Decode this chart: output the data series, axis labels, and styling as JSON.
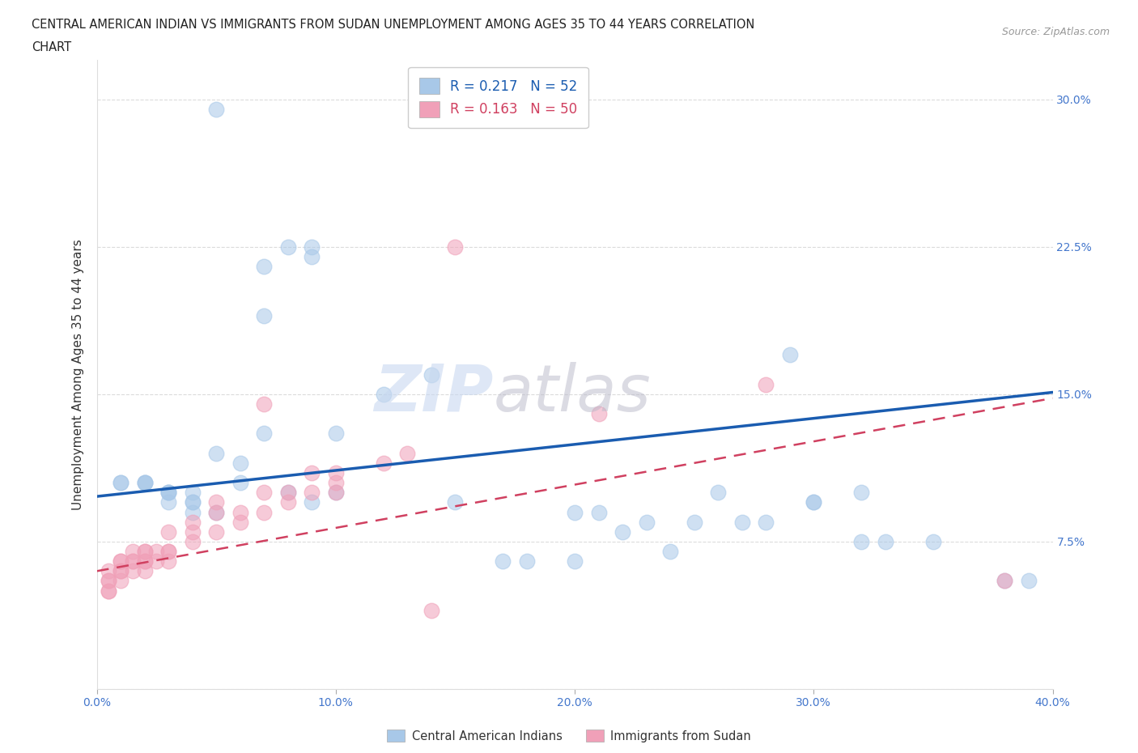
{
  "title_line1": "CENTRAL AMERICAN INDIAN VS IMMIGRANTS FROM SUDAN UNEMPLOYMENT AMONG AGES 35 TO 44 YEARS CORRELATION",
  "title_line2": "CHART",
  "source": "Source: ZipAtlas.com",
  "ylabel": "Unemployment Among Ages 35 to 44 years",
  "xlim": [
    0.0,
    0.4
  ],
  "ylim": [
    0.0,
    0.32
  ],
  "xticks": [
    0.0,
    0.1,
    0.2,
    0.3,
    0.4
  ],
  "xticklabels": [
    "0.0%",
    "10.0%",
    "20.0%",
    "30.0%",
    "40.0%"
  ],
  "ytick_right_labels": [
    "",
    "7.5%",
    "15.0%",
    "22.5%",
    "30.0%"
  ],
  "ytick_right_values": [
    0.0,
    0.075,
    0.15,
    0.225,
    0.3
  ],
  "R_blue": 0.217,
  "N_blue": 52,
  "R_pink": 0.163,
  "N_pink": 50,
  "blue_color": "#A8C8E8",
  "pink_color": "#F0A0B8",
  "blue_line_color": "#1A5CB0",
  "pink_line_color": "#D04060",
  "legend_label_blue": "Central American Indians",
  "legend_label_pink": "Immigrants from Sudan",
  "blue_scatter_x": [
    0.05,
    0.07,
    0.07,
    0.08,
    0.09,
    0.09,
    0.01,
    0.01,
    0.02,
    0.02,
    0.02,
    0.03,
    0.03,
    0.03,
    0.03,
    0.04,
    0.04,
    0.04,
    0.04,
    0.05,
    0.05,
    0.06,
    0.06,
    0.07,
    0.08,
    0.09,
    0.1,
    0.1,
    0.12,
    0.14,
    0.15,
    0.2,
    0.21,
    0.22,
    0.25,
    0.28,
    0.3,
    0.32,
    0.33,
    0.35,
    0.38,
    0.29,
    0.3,
    0.32,
    0.27,
    0.26,
    0.23,
    0.24,
    0.17,
    0.18,
    0.2,
    0.39
  ],
  "blue_scatter_y": [
    0.295,
    0.19,
    0.215,
    0.225,
    0.225,
    0.22,
    0.105,
    0.105,
    0.105,
    0.105,
    0.105,
    0.1,
    0.1,
    0.1,
    0.095,
    0.1,
    0.095,
    0.095,
    0.09,
    0.09,
    0.12,
    0.115,
    0.105,
    0.13,
    0.1,
    0.095,
    0.13,
    0.1,
    0.15,
    0.16,
    0.095,
    0.09,
    0.09,
    0.08,
    0.085,
    0.085,
    0.095,
    0.075,
    0.075,
    0.075,
    0.055,
    0.17,
    0.095,
    0.1,
    0.085,
    0.1,
    0.085,
    0.07,
    0.065,
    0.065,
    0.065,
    0.055
  ],
  "pink_scatter_x": [
    0.005,
    0.005,
    0.005,
    0.005,
    0.005,
    0.01,
    0.01,
    0.01,
    0.01,
    0.01,
    0.015,
    0.015,
    0.015,
    0.015,
    0.02,
    0.02,
    0.02,
    0.02,
    0.02,
    0.025,
    0.025,
    0.03,
    0.03,
    0.03,
    0.03,
    0.04,
    0.04,
    0.04,
    0.05,
    0.05,
    0.05,
    0.06,
    0.06,
    0.07,
    0.07,
    0.07,
    0.08,
    0.08,
    0.09,
    0.09,
    0.1,
    0.1,
    0.1,
    0.12,
    0.13,
    0.14,
    0.15,
    0.21,
    0.28,
    0.38
  ],
  "pink_scatter_y": [
    0.05,
    0.05,
    0.055,
    0.055,
    0.06,
    0.055,
    0.06,
    0.06,
    0.065,
    0.065,
    0.06,
    0.065,
    0.065,
    0.07,
    0.06,
    0.065,
    0.065,
    0.07,
    0.07,
    0.065,
    0.07,
    0.065,
    0.07,
    0.07,
    0.08,
    0.075,
    0.08,
    0.085,
    0.08,
    0.09,
    0.095,
    0.085,
    0.09,
    0.09,
    0.1,
    0.145,
    0.095,
    0.1,
    0.1,
    0.11,
    0.1,
    0.105,
    0.11,
    0.115,
    0.12,
    0.04,
    0.225,
    0.14,
    0.155,
    0.055
  ],
  "background_color": "#ffffff",
  "grid_color": "#cccccc",
  "blue_trend_x0": 0.0,
  "blue_trend_y0": 0.098,
  "blue_trend_x1": 0.4,
  "blue_trend_y1": 0.151,
  "pink_trend_x0": 0.0,
  "pink_trend_y0": 0.06,
  "pink_trend_x1": 0.4,
  "pink_trend_y1": 0.148
}
